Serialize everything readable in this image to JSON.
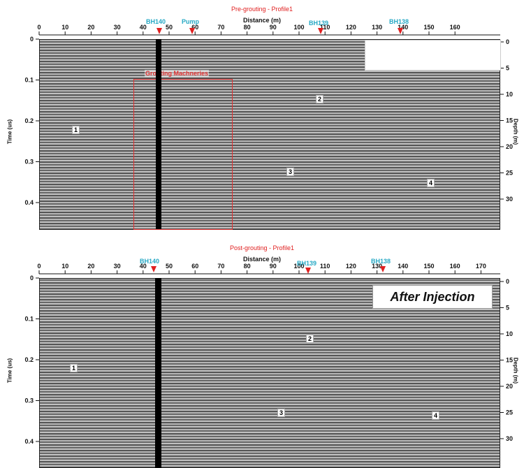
{
  "panels": [
    {
      "title": "Pre-grouting - Profile1",
      "x_label": "Distance (m)",
      "y_label_left": "Time (us)",
      "y_label_right": "Depth (m)",
      "x_ticks": [
        "0",
        "10",
        "20",
        "30",
        "40",
        "50",
        "60",
        "70",
        "80",
        "90",
        "100",
        "110",
        "120",
        "130",
        "140",
        "150",
        "160"
      ],
      "y_ticks_left": [
        "0",
        "0.1",
        "0.2",
        "0.3",
        "0.4"
      ],
      "y_ticks_right": [
        "0",
        "5",
        "10",
        "15",
        "20",
        "25",
        "30"
      ],
      "boreholes": [
        {
          "label": "BH140"
        },
        {
          "label": "Pump"
        },
        {
          "label": "BH139"
        },
        {
          "label": "BH138"
        }
      ],
      "grouting_label": "Grouting Machneries",
      "reflectors": [
        "1",
        "2",
        "3",
        "4"
      ]
    },
    {
      "title": "Post-grouting - Profile1",
      "x_label": "Distance (m)",
      "y_label_left": "Time (us)",
      "y_label_right": "Depth (m)",
      "x_ticks": [
        "0",
        "10",
        "20",
        "30",
        "40",
        "50",
        "60",
        "70",
        "80",
        "90",
        "100",
        "110",
        "120",
        "130",
        "140",
        "150",
        "160",
        "170"
      ],
      "y_ticks_left": [
        "0",
        "0.1",
        "0.2",
        "0.3",
        "0.4"
      ],
      "y_ticks_right": [
        "0",
        "5",
        "10",
        "15",
        "20",
        "25",
        "30"
      ],
      "boreholes": [
        {
          "label": "BH140"
        },
        {
          "label": "BH139"
        },
        {
          "label": "BH138"
        }
      ],
      "annotation": "After Injection",
      "reflectors": [
        "1",
        "2",
        "3",
        "4"
      ]
    }
  ]
}
